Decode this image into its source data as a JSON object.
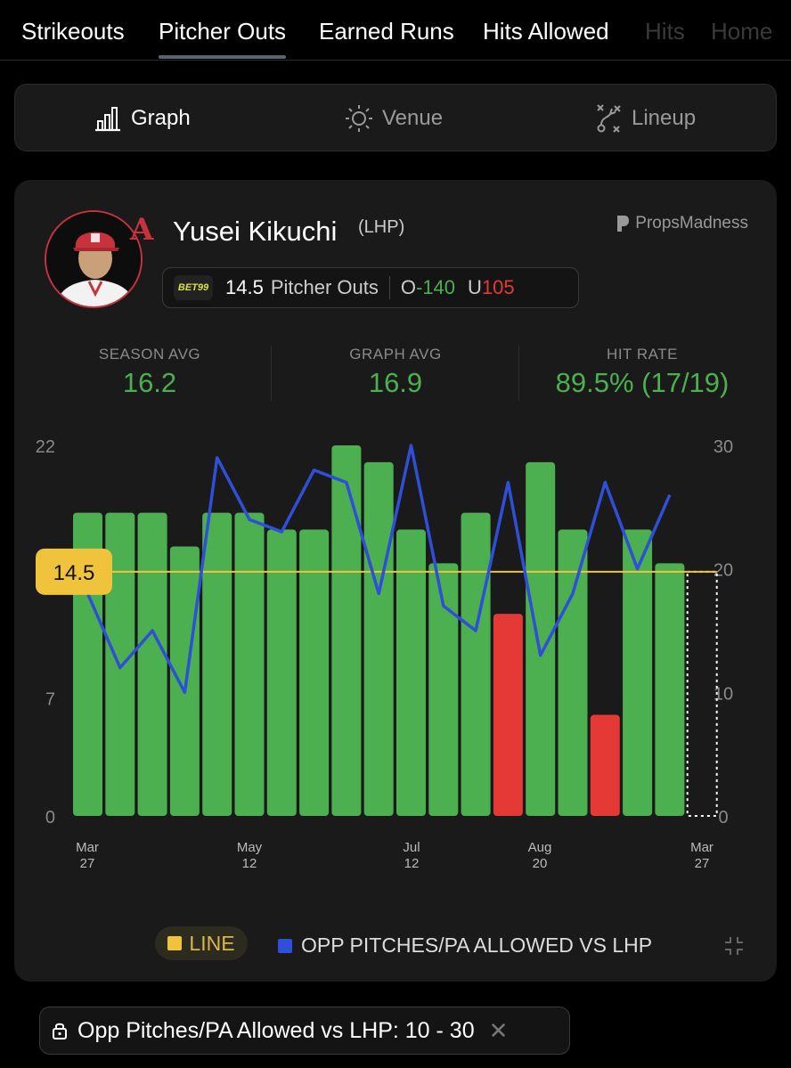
{
  "tabs": [
    {
      "label": "Strikeouts",
      "active": false
    },
    {
      "label": "Pitcher Outs",
      "active": true
    },
    {
      "label": "Earned Runs",
      "active": false
    },
    {
      "label": "Hits Allowed",
      "active": false
    },
    {
      "label": "Hits",
      "active": false
    },
    {
      "label": "Home",
      "active": false
    }
  ],
  "view_switch": {
    "graph": {
      "label": "Graph",
      "icon": "bar-chart-icon"
    },
    "venue": {
      "label": "Venue",
      "icon": "sun-icon"
    },
    "lineup": {
      "label": "Lineup",
      "icon": "lineup-icon"
    }
  },
  "player": {
    "name": "Yusei Kikuchi",
    "hand": "(LHP)",
    "team_logo": "A",
    "brand": "PropsMadness"
  },
  "prop_line": {
    "book": "BET99",
    "line": "14.5",
    "market": "Pitcher Outs",
    "over_label": "O",
    "over_odds": "-140",
    "under_label": "U",
    "under_odds": "105"
  },
  "stats": [
    {
      "label": "SEASON AVG",
      "value": "16.2"
    },
    {
      "label": "GRAPH AVG",
      "value": "16.9"
    },
    {
      "label": "HIT RATE",
      "value": "89.5% (17/19)"
    }
  ],
  "colors": {
    "hit": "#4caf50",
    "miss": "#e53935",
    "line": "#f0c33c",
    "series": "#2f4fd8"
  },
  "chart_data": {
    "type": "bar",
    "left_axis": {
      "ticks": [
        "0",
        "7",
        "14",
        "22"
      ],
      "ylim": [
        0,
        22
      ]
    },
    "right_axis": {
      "ticks": [
        "0",
        "10",
        "20",
        "30"
      ],
      "ylim": [
        0,
        30
      ]
    },
    "x_tick_labels": [
      {
        "top": "Mar",
        "bottom": "27"
      },
      {
        "top": "May",
        "bottom": "12"
      },
      {
        "top": "Jul",
        "bottom": "12"
      },
      {
        "top": "Aug",
        "bottom": "20"
      },
      {
        "top": "Mar",
        "bottom": "27"
      }
    ],
    "line_value": 14.5,
    "line_label": "14.5",
    "bars": [
      18,
      18,
      18,
      16,
      18,
      18,
      17,
      17,
      22,
      21,
      17,
      15,
      18,
      12,
      21,
      17,
      6,
      17,
      15
    ],
    "opp_pitches_per_pa": [
      18,
      12,
      15,
      10,
      29,
      24,
      23,
      28,
      27,
      18,
      30,
      17,
      15,
      27,
      13,
      18,
      27,
      20,
      26
    ],
    "legend": [
      {
        "name": "LINE",
        "color": "#f0c33c"
      },
      {
        "name": "OPP PITCHES/PA ALLOWED VS LHP",
        "color": "#2f4fd8"
      }
    ]
  },
  "filter_chip": {
    "label": "Opp Pitches/PA Allowed vs LHP: 10 - 30",
    "close": "✕"
  }
}
